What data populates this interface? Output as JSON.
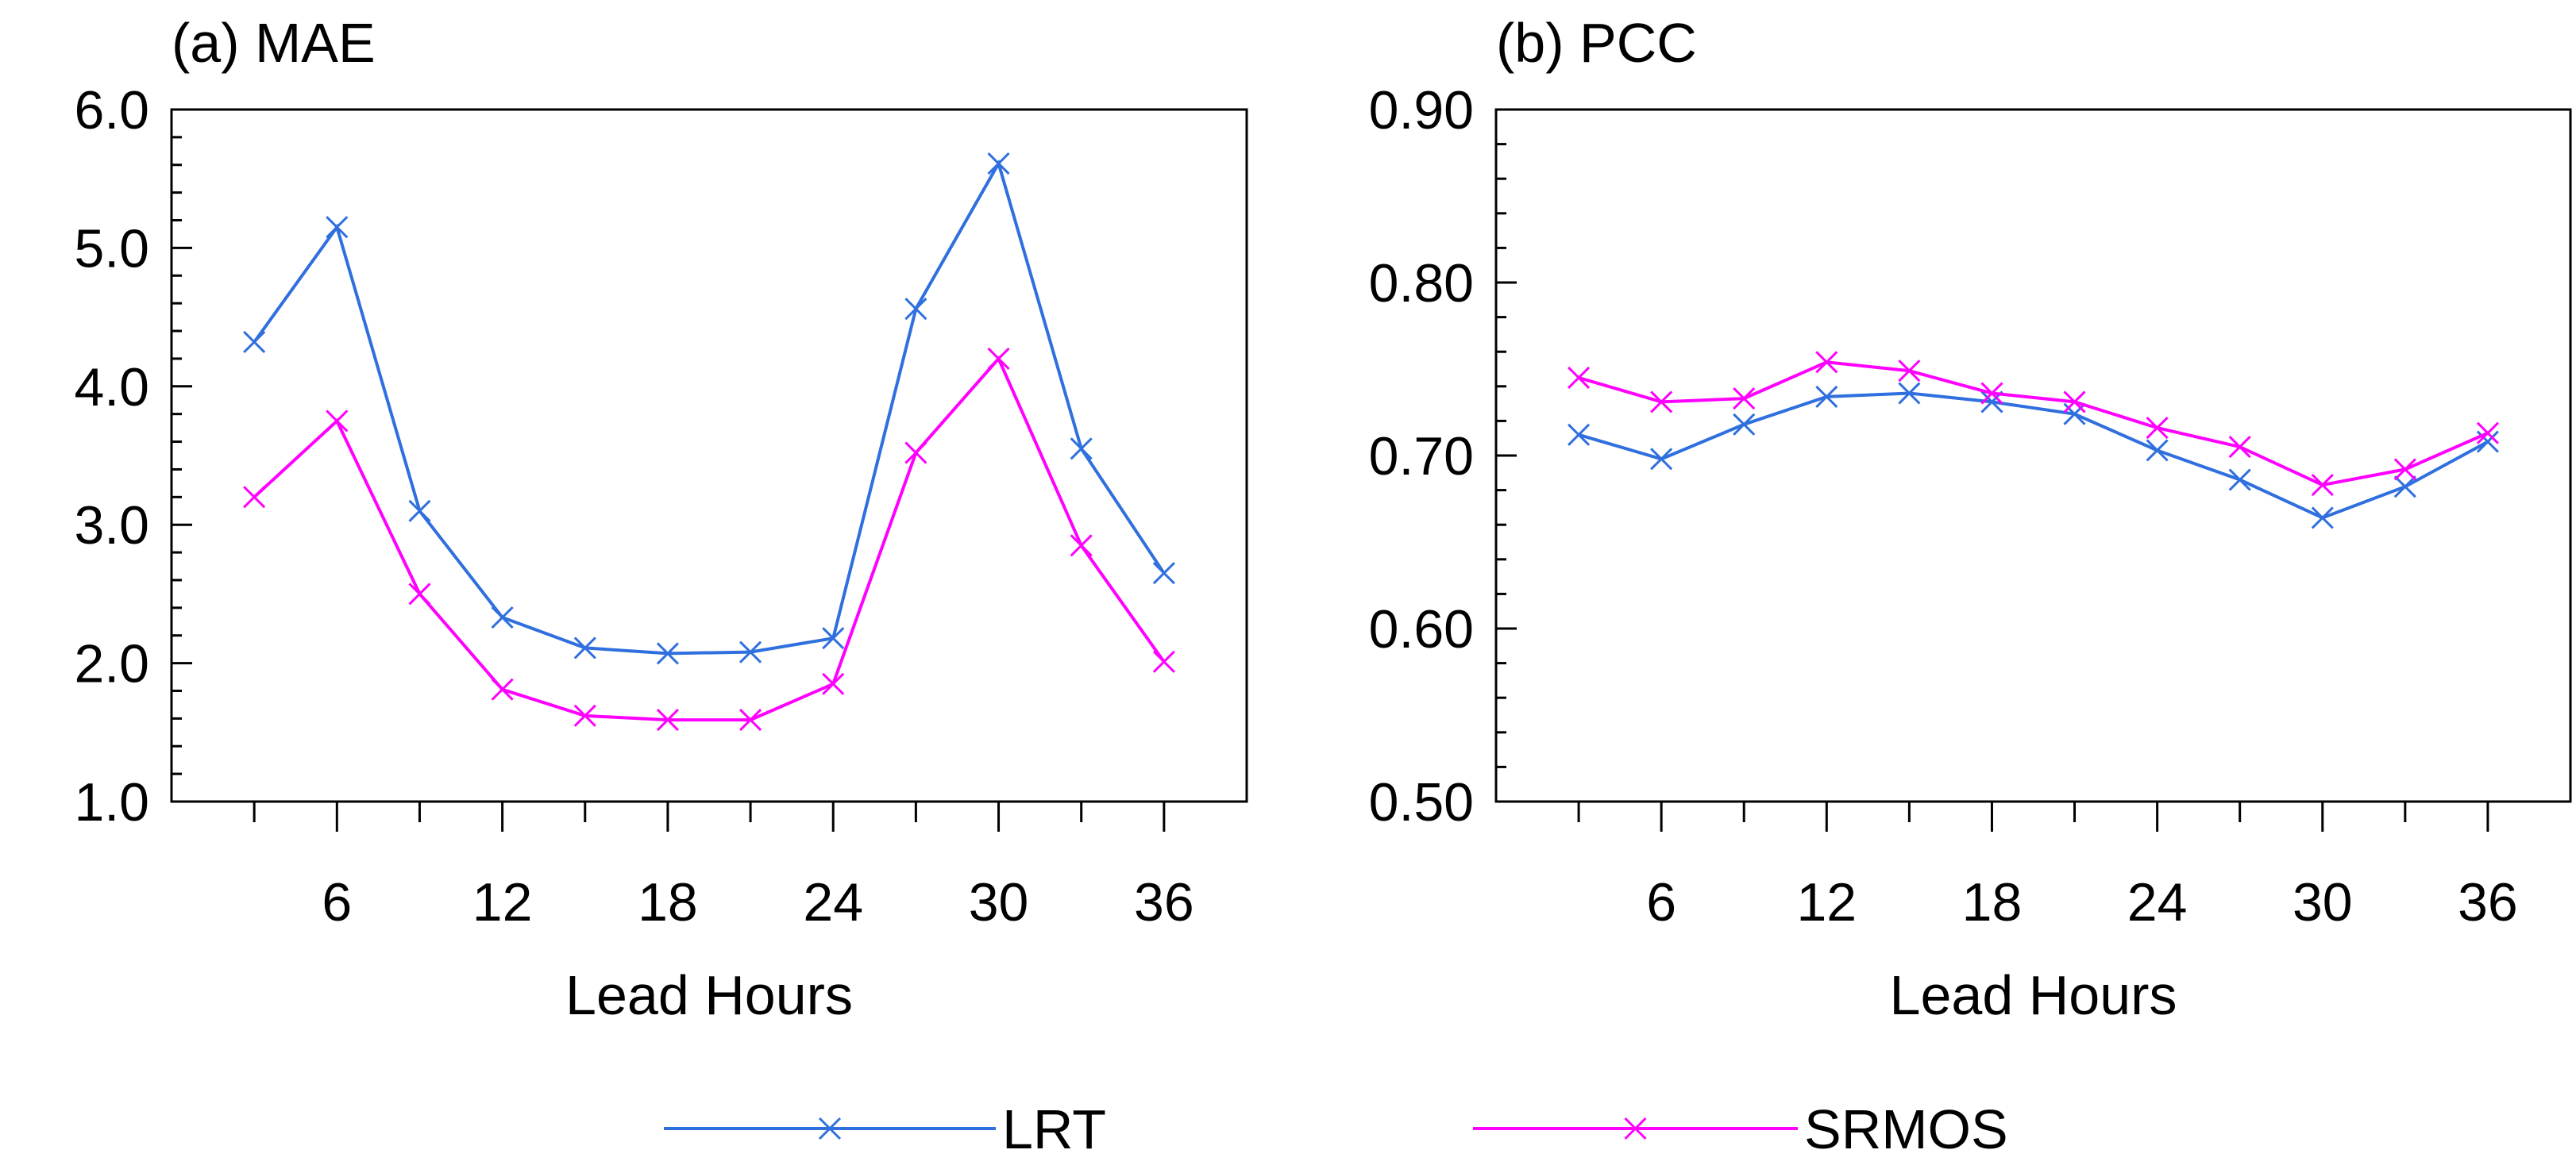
{
  "chart_data": [
    {
      "type": "line",
      "title": "(a) MAE",
      "xlabel": "Lead Hours",
      "ylabel": "",
      "x": [
        3,
        6,
        9,
        12,
        15,
        18,
        21,
        24,
        27,
        30,
        33,
        36
      ],
      "xticks": [
        6,
        12,
        18,
        24,
        30,
        36
      ],
      "xtick_labels": [
        "6",
        "12",
        "18",
        "24",
        "30",
        "36"
      ],
      "xlim": [
        0,
        39
      ],
      "ylim": [
        1.0,
        6.0
      ],
      "yticks": [
        1.0,
        2.0,
        3.0,
        4.0,
        5.0,
        6.0
      ],
      "ytick_labels": [
        "1.0",
        "2.0",
        "3.0",
        "4.0",
        "5.0",
        "6.0"
      ],
      "series": [
        {
          "name": "LRT",
          "color": "#2f6fde",
          "values": [
            4.32,
            5.15,
            3.1,
            2.33,
            2.11,
            2.07,
            2.08,
            2.18,
            4.56,
            5.61,
            3.55,
            2.65
          ]
        },
        {
          "name": "SRMOS",
          "color": "#ff00ff",
          "values": [
            3.2,
            3.75,
            2.5,
            1.81,
            1.62,
            1.59,
            1.59,
            1.85,
            3.52,
            4.2,
            2.85,
            2.01
          ]
        }
      ]
    },
    {
      "type": "line",
      "title": "(b) PCC",
      "xlabel": "Lead Hours",
      "ylabel": "",
      "x": [
        3,
        6,
        9,
        12,
        15,
        18,
        21,
        24,
        27,
        30,
        33,
        36
      ],
      "xticks": [
        6,
        12,
        18,
        24,
        30,
        36
      ],
      "xtick_labels": [
        "6",
        "12",
        "18",
        "24",
        "30",
        "36"
      ],
      "xlim": [
        0,
        39
      ],
      "ylim": [
        0.5,
        0.9
      ],
      "yticks": [
        0.5,
        0.6,
        0.7,
        0.8,
        0.9
      ],
      "ytick_labels": [
        "0.50",
        "0.60",
        "0.70",
        "0.80",
        "0.90"
      ],
      "series": [
        {
          "name": "LRT",
          "color": "#2f6fde",
          "values": [
            0.712,
            0.698,
            0.718,
            0.734,
            0.736,
            0.731,
            0.724,
            0.703,
            0.686,
            0.664,
            0.682,
            0.708
          ]
        },
        {
          "name": "SRMOS",
          "color": "#ff00ff",
          "values": [
            0.745,
            0.731,
            0.733,
            0.754,
            0.749,
            0.736,
            0.731,
            0.716,
            0.705,
            0.683,
            0.692,
            0.713
          ]
        }
      ]
    }
  ],
  "legend": {
    "position": "bottom",
    "entries": [
      {
        "label": "LRT",
        "color": "#2f6fde"
      },
      {
        "label": "SRMOS",
        "color": "#ff00ff"
      }
    ]
  }
}
